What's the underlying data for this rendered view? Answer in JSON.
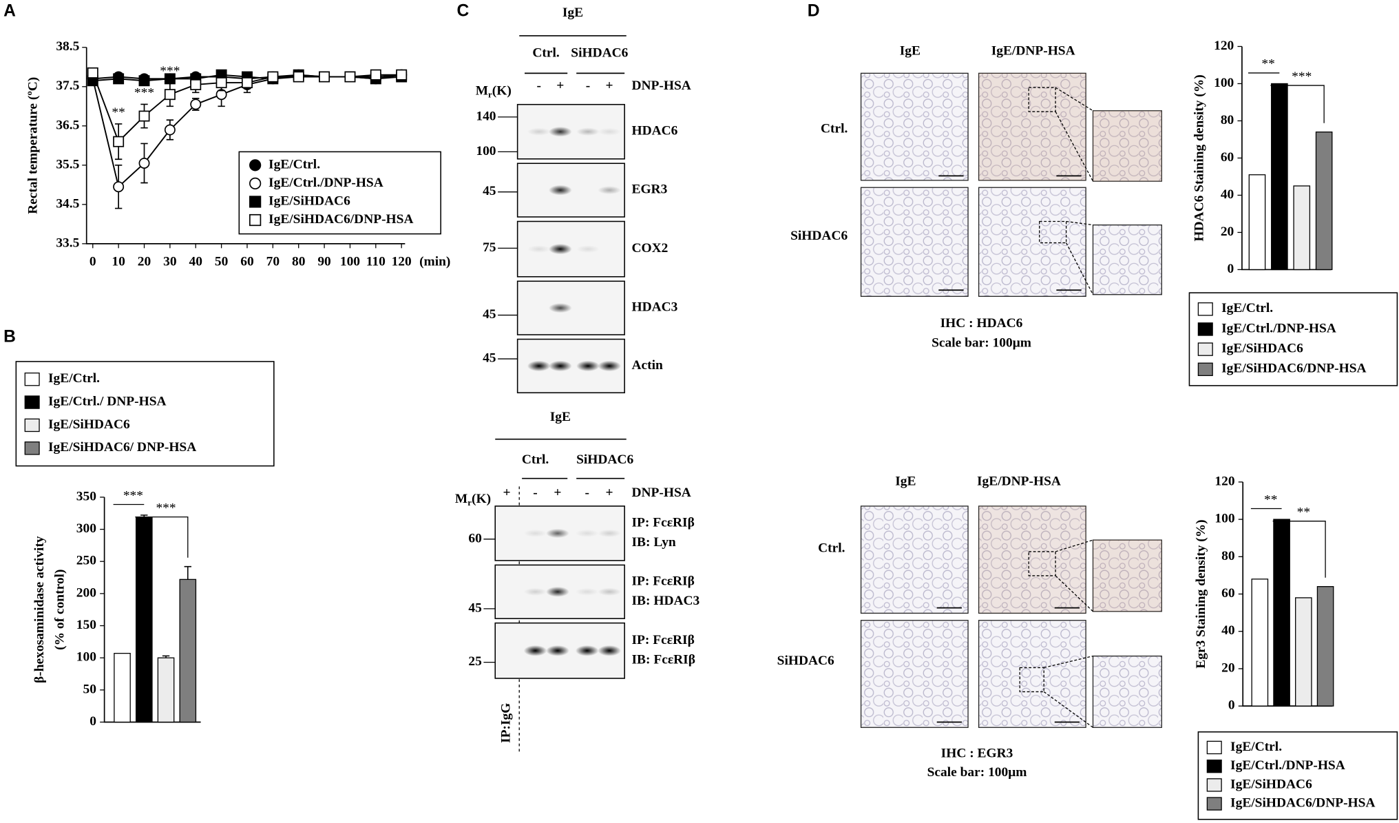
{
  "panel_labels": [
    "A",
    "B",
    "C",
    "D"
  ],
  "chart_data": [
    {
      "type": "line",
      "x": [
        0,
        10,
        20,
        30,
        40,
        50,
        60,
        70,
        80,
        90,
        100,
        110,
        120
      ],
      "xlim": [
        0,
        120
      ],
      "xticks": [
        0,
        10,
        20,
        30,
        40,
        50,
        60,
        70,
        80,
        90,
        100,
        110,
        120
      ],
      "xlabel": "(min)",
      "ylabel": "Rectal  temperature (ºC)",
      "ylim": [
        33.5,
        38.5
      ],
      "yticks": [
        33.5,
        34.5,
        35.5,
        36.5,
        37.5,
        38.5
      ],
      "legend": "lower right",
      "series": [
        {
          "name": "IgE/Ctrl.",
          "marker": "circle",
          "filled": true,
          "color": "#000000",
          "values": [
            37.7,
            37.75,
            37.7,
            37.7,
            37.75,
            37.75,
            37.7,
            37.75,
            37.8,
            37.75,
            37.75,
            37.75,
            37.8
          ],
          "errors": [
            0.05,
            0.1,
            0.1,
            0.05,
            0.05,
            0.1,
            0.1,
            0.1,
            0.1,
            0.05,
            0.05,
            0.1,
            0.05
          ]
        },
        {
          "name": "IgE/Ctrl./DNP-HSA",
          "marker": "circle",
          "filled": false,
          "color": "#000000",
          "values": [
            37.7,
            34.95,
            35.55,
            36.4,
            37.05,
            37.3,
            37.55,
            37.7,
            37.75,
            37.75,
            37.75,
            37.7,
            37.8
          ],
          "errors": [
            0.05,
            0.55,
            0.5,
            0.25,
            0.15,
            0.3,
            0.2,
            0.1,
            0.1,
            0.05,
            0.05,
            0.1,
            0.05
          ]
        },
        {
          "name": "IgE/SiHDAC6",
          "marker": "square",
          "filled": true,
          "color": "#000000",
          "values": [
            37.65,
            37.7,
            37.65,
            37.7,
            37.7,
            37.8,
            37.75,
            37.7,
            37.8,
            37.75,
            37.75,
            37.7,
            37.75
          ],
          "errors": [
            0.05,
            0.1,
            0.1,
            0.05,
            0.05,
            0.1,
            0.1,
            0.1,
            0.1,
            0.05,
            0.05,
            0.1,
            0.05
          ]
        },
        {
          "name": "IgE/SiHDAC6/DNP-HSA",
          "marker": "square",
          "filled": false,
          "color": "#000000",
          "values": [
            37.85,
            36.1,
            36.75,
            37.3,
            37.55,
            37.6,
            37.6,
            37.75,
            37.75,
            37.75,
            37.75,
            37.8,
            37.8
          ],
          "errors": [
            0.1,
            0.45,
            0.3,
            0.3,
            0.2,
            0.2,
            0.15,
            0.1,
            0.1,
            0.05,
            0.05,
            0.1,
            0.05
          ]
        }
      ],
      "annotations": [
        {
          "text": "**",
          "x": 10
        },
        {
          "text": "***",
          "x": 20
        },
        {
          "text": "***",
          "x": 30
        }
      ]
    },
    {
      "type": "bar",
      "categories": [
        "IgE/Ctrl.",
        "IgE/Ctrl./ DNP-HSA",
        "IgE/SiHDAC6",
        "IgE/SiHDAC6/ DNP-HSA"
      ],
      "values": [
        107,
        318,
        100,
        222
      ],
      "errors": [
        0,
        4,
        3,
        20
      ],
      "colors": [
        "#ffffff",
        "#000000",
        "#ececec",
        "#7f7f7f"
      ],
      "ylabel": [
        "β-hexosaminidase activity",
        "(% of control)"
      ],
      "ylim": [
        0,
        350
      ],
      "yticks": [
        0,
        50,
        100,
        150,
        200,
        250,
        300,
        350
      ],
      "legend": "top",
      "annotations": [
        {
          "text": "***",
          "from": 0,
          "to": 1
        },
        {
          "text": "***",
          "from": 1,
          "to": 3
        }
      ]
    },
    {
      "type": "bar",
      "categories": [
        "IgE/Ctrl.",
        "IgE/Ctrl./DNP-HSA",
        "IgE/SiHDAC6",
        "IgE/SiHDAC6/DNP-HSA"
      ],
      "values": [
        51,
        100,
        45,
        74
      ],
      "errors": [
        0,
        0,
        0,
        0
      ],
      "colors": [
        "#ffffff",
        "#000000",
        "#ececec",
        "#7f7f7f"
      ],
      "ylabel": [
        "HDAC6 Staining density (%)"
      ],
      "ylim": [
        0,
        120
      ],
      "yticks": [
        0,
        20,
        40,
        60,
        80,
        100,
        120
      ],
      "legend": "bottom",
      "annotations": [
        {
          "text": "**",
          "from": 0,
          "to": 1
        },
        {
          "text": "***",
          "from": 1,
          "to": 3
        }
      ]
    },
    {
      "type": "bar",
      "categories": [
        "IgE/Ctrl.",
        "IgE/Ctrl./DNP-HSA",
        "IgE/SiHDAC6",
        "IgE/SiHDAC6/DNP-HSA"
      ],
      "values": [
        68,
        100,
        58,
        64
      ],
      "errors": [
        0,
        0,
        0,
        0
      ],
      "colors": [
        "#ffffff",
        "#000000",
        "#ececec",
        "#7f7f7f"
      ],
      "ylabel": [
        "Egr3 Staining density (%)"
      ],
      "ylim": [
        0,
        120
      ],
      "yticks": [
        0,
        20,
        40,
        60,
        80,
        100,
        120
      ],
      "legend": "bottom",
      "annotations": [
        {
          "text": "**",
          "from": 0,
          "to": 1
        },
        {
          "text": "**",
          "from": 1,
          "to": 3
        }
      ]
    }
  ],
  "blots": {
    "top": {
      "treatment": "IgE",
      "groups": [
        "Ctrl.",
        "SiHDAC6"
      ],
      "mr": [
        "M",
        "r",
        "(K)"
      ],
      "lanes": [
        "-",
        "+",
        "-",
        "+"
      ],
      "stimulus": "DNP-HSA",
      "rows": [
        {
          "label": [
            "HDAC6"
          ],
          "markers": [
            140,
            100
          ]
        },
        {
          "label": [
            "EGR3"
          ],
          "markers": [
            45
          ]
        },
        {
          "label": [
            "COX2"
          ],
          "markers": [
            75
          ]
        },
        {
          "label": [
            "HDAC3"
          ],
          "markers": [
            45
          ]
        },
        {
          "label": [
            "Actin"
          ],
          "markers": [
            45
          ]
        }
      ]
    },
    "bottom": {
      "treatment": "IgE",
      "groups": [
        "Ctrl.",
        "SiHDAC6"
      ],
      "mr": [
        "M",
        "r",
        "(K)"
      ],
      "lanes": [
        "+",
        "-",
        "+",
        "-",
        "+"
      ],
      "stimulus": "DNP-HSA",
      "control": "IP:IgG",
      "rows": [
        {
          "label": [
            "IP: FcεRIβ",
            "IB: Lyn"
          ],
          "markers": [
            60
          ]
        },
        {
          "label": [
            "IP: FcεRIβ",
            "IB: HDAC3"
          ],
          "markers": [
            45
          ]
        },
        {
          "label": [
            "IP: FcεRIβ",
            "IB: FcεRIβ"
          ],
          "markers": [
            25
          ]
        }
      ]
    }
  },
  "ihc": {
    "top": {
      "columns": [
        "IgE",
        "IgE/DNP-HSA"
      ],
      "rows": [
        "Ctrl.",
        "SiHDAC6"
      ],
      "caption": "IHC : HDAC6",
      "scale": "Scale bar: 100μm"
    },
    "bottom": {
      "columns": [
        "IgE",
        "IgE/DNP-HSA"
      ],
      "rows": [
        "Ctrl.",
        "SiHDAC6"
      ],
      "caption": "IHC : EGR3",
      "scale": "Scale bar: 100μm"
    }
  }
}
